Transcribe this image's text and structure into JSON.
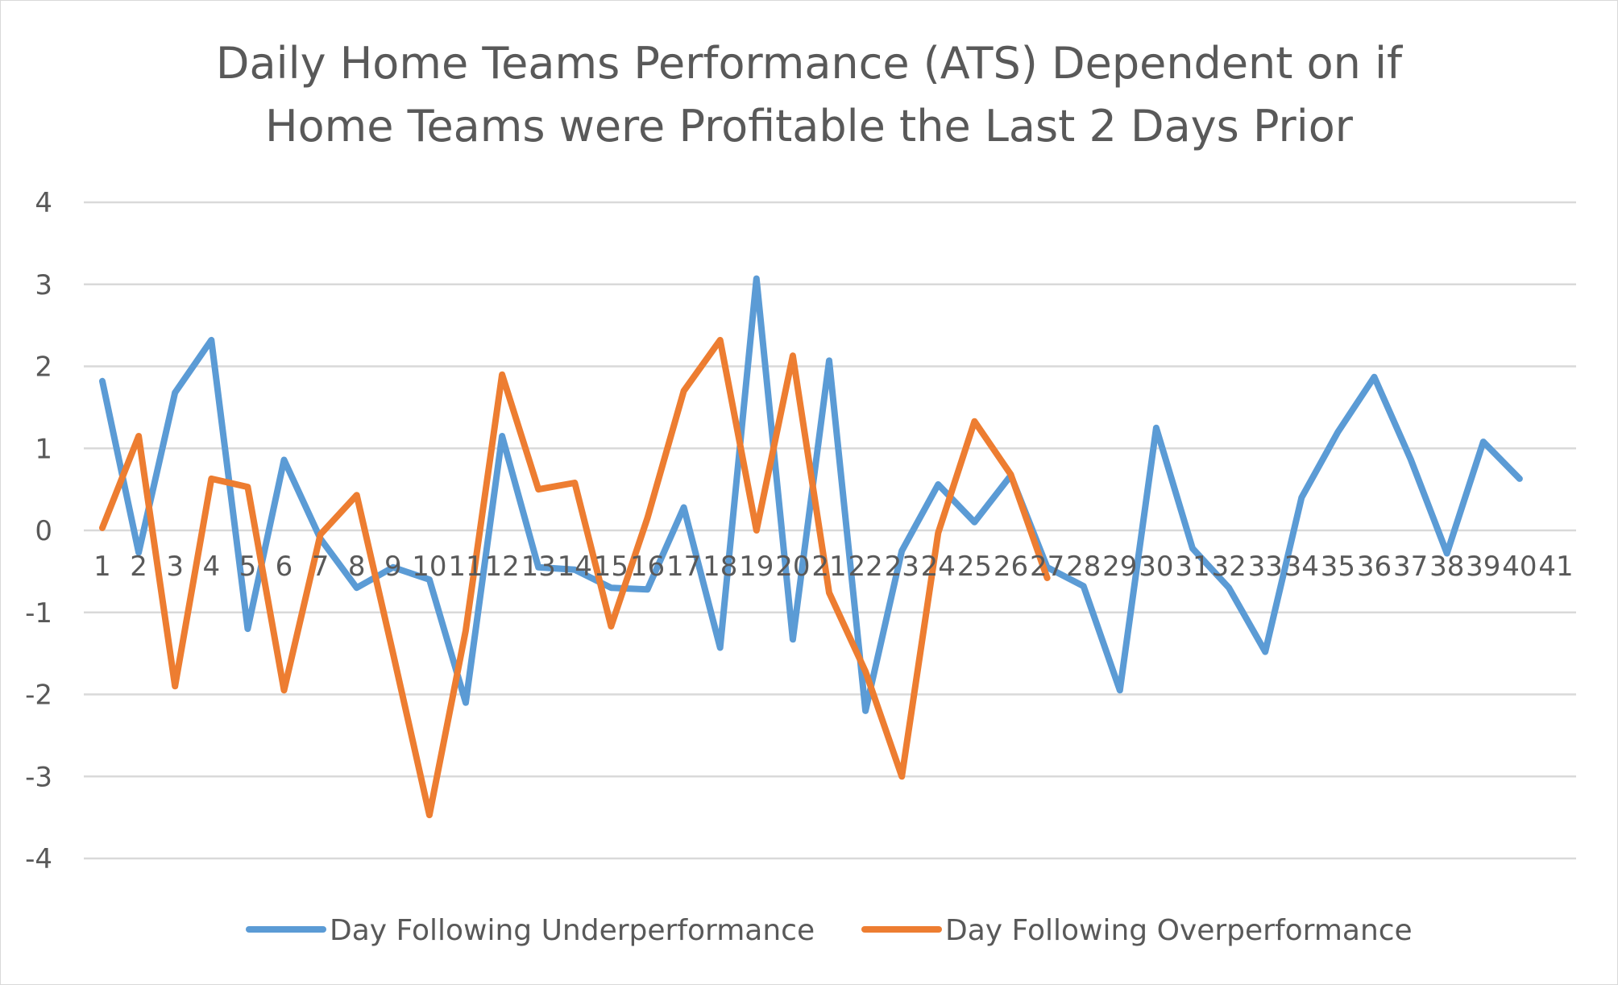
{
  "chart_data": {
    "type": "line",
    "title_lines": [
      "Daily Home Teams Performance (ATS) Dependent on if",
      "Home Teams were Profitable the Last 2 Days Prior"
    ],
    "xlabel": "",
    "ylabel": "",
    "categories": [
      "1",
      "2",
      "3",
      "4",
      "5",
      "6",
      "7",
      "8",
      "9",
      "10",
      "11",
      "12",
      "13",
      "14",
      "15",
      "16",
      "17",
      "18",
      "19",
      "20",
      "21",
      "22",
      "23",
      "24",
      "25",
      "26",
      "27",
      "28",
      "29",
      "30",
      "31",
      "32",
      "33",
      "34",
      "35",
      "36",
      "37",
      "38",
      "39",
      "40",
      "41"
    ],
    "y_ticks": [
      "4",
      "3",
      "2",
      "1",
      "0",
      "-1",
      "-2",
      "-3",
      "-4"
    ],
    "ylim": [
      -4,
      4
    ],
    "grid": true,
    "legend_position": "bottom",
    "series": [
      {
        "name": "Day Following Underperformance",
        "color": "#5b9bd5",
        "values": [
          1.82,
          -0.27,
          1.68,
          2.32,
          -1.2,
          0.86,
          -0.1,
          -0.7,
          -0.45,
          -0.6,
          -2.1,
          1.15,
          -0.45,
          -0.48,
          -0.7,
          -0.72,
          0.28,
          -1.43,
          3.07,
          -1.33,
          2.07,
          -2.2,
          -0.25,
          0.56,
          0.1,
          0.67,
          -0.45,
          -0.68,
          -1.95,
          1.25,
          -0.22,
          -0.7,
          -1.48,
          0.4,
          1.2,
          1.87,
          0.87,
          -0.28,
          1.08,
          0.63,
          null
        ]
      },
      {
        "name": "Day Following Overperformance",
        "color": "#ed7d31",
        "values": [
          0.03,
          1.15,
          -1.9,
          0.63,
          0.53,
          -1.95,
          -0.05,
          0.43,
          -1.5,
          -3.47,
          -1.22,
          1.9,
          0.5,
          0.58,
          -1.17,
          0.15,
          1.7,
          2.32,
          0.0,
          2.13,
          -0.76,
          -1.72,
          -3.0,
          -0.03,
          1.33,
          0.68,
          -0.58,
          null,
          null,
          null,
          null,
          null,
          null,
          null,
          null,
          null,
          null,
          null,
          null,
          null,
          null
        ]
      }
    ]
  }
}
